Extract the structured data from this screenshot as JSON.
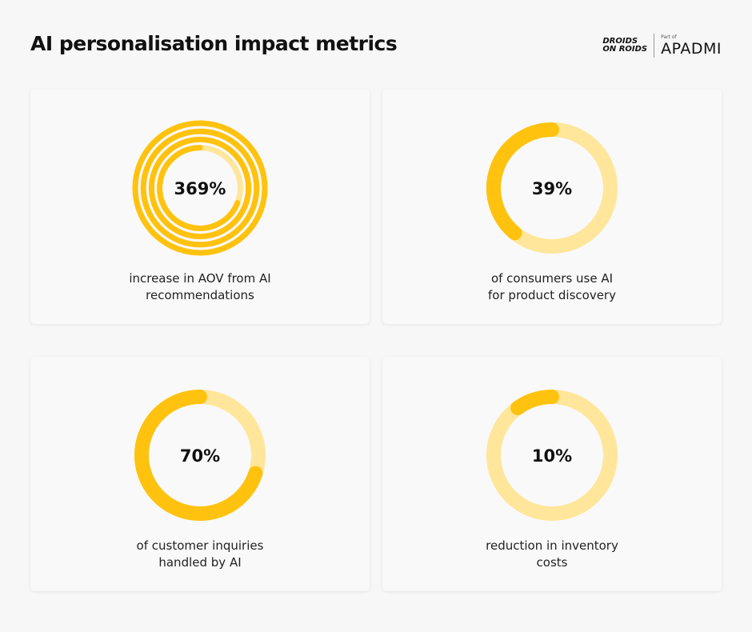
{
  "title": "AI personalisation impact metrics",
  "logo": {
    "brand": [
      "DROIDS",
      "ON ROIDS"
    ],
    "tagline": "Part of",
    "parent": "APADMI"
  },
  "chart_data": [
    {
      "type": "gauge",
      "values": [
        369
      ],
      "value_labels": [
        "369%"
      ],
      "caption": [
        "increase in AOV from AI",
        "recommendations"
      ],
      "color": "#ffc20e",
      "track_color": "#ffe69a"
    },
    {
      "type": "gauge",
      "values": [
        39
      ],
      "value_labels": [
        "39%"
      ],
      "caption": [
        "of consumers use AI",
        "for product discovery"
      ],
      "color": "#ffc20e",
      "track_color": "#ffe69a"
    },
    {
      "type": "gauge",
      "values": [
        70
      ],
      "value_labels": [
        "70%"
      ],
      "caption": [
        "of customer inquiries",
        "handled by AI"
      ],
      "color": "#ffc20e",
      "track_color": "#ffe69a"
    },
    {
      "type": "gauge",
      "values": [
        10
      ],
      "value_labels": [
        "10%"
      ],
      "caption": [
        "reduction in inventory",
        "costs"
      ],
      "color": "#ffc20e",
      "track_color": "#ffe69a"
    }
  ]
}
